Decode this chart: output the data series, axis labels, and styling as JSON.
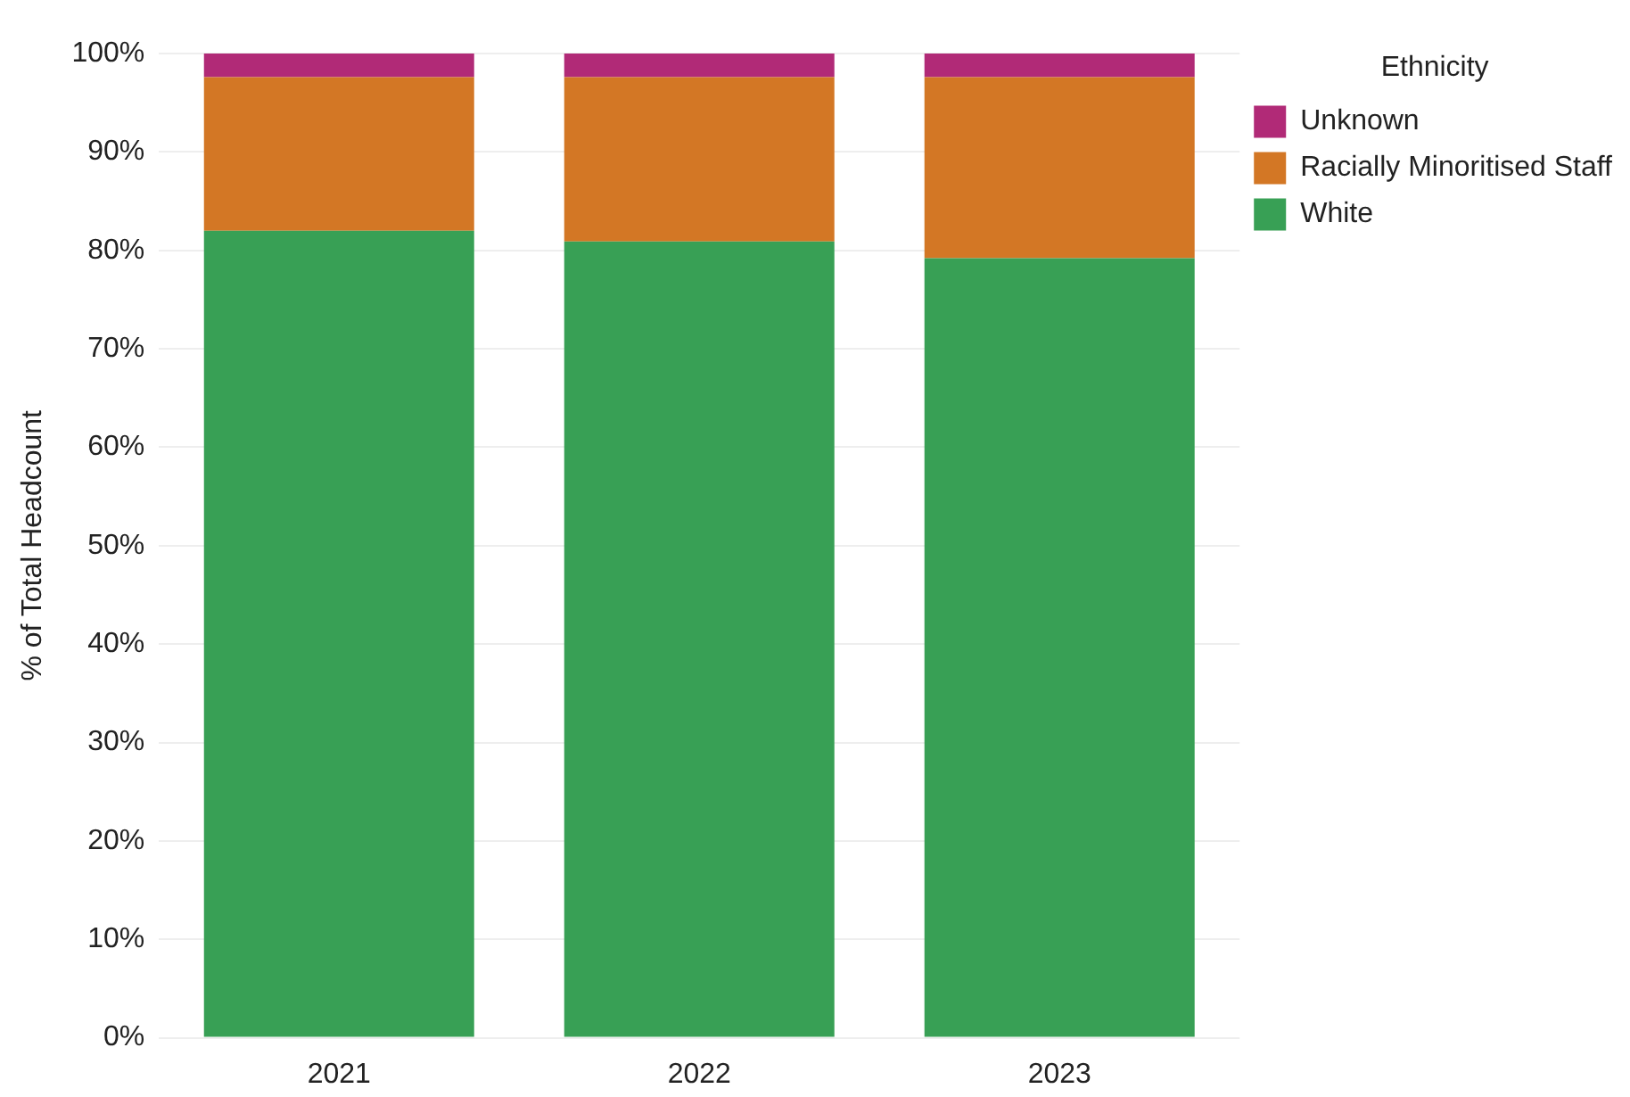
{
  "chart_data": {
    "type": "bar",
    "stacked": true,
    "ylabel": "% of Total Headcount",
    "legend_title": "Ethnicity",
    "legend": "top right",
    "grid": "y",
    "categories": [
      "2021",
      "2022",
      "2023"
    ],
    "series": [
      {
        "name": "White",
        "color": "#38a055",
        "values": [
          82.0,
          80.9,
          79.2
        ]
      },
      {
        "name": "Racially Minoritised Staff",
        "color": "#d37725",
        "values": [
          15.6,
          16.7,
          18.4
        ]
      },
      {
        "name": "Unknown",
        "color": "#b12a77",
        "values": [
          2.4,
          2.4,
          2.4
        ]
      }
    ],
    "ylim": [
      0,
      100
    ],
    "yticks": [
      {
        "value": 0,
        "label": "0%"
      },
      {
        "value": 10,
        "label": "10%"
      },
      {
        "value": 20,
        "label": "20%"
      },
      {
        "value": 30,
        "label": "30%"
      },
      {
        "value": 40,
        "label": "40%"
      },
      {
        "value": 50,
        "label": "50%"
      },
      {
        "value": 60,
        "label": "60%"
      },
      {
        "value": 70,
        "label": "70%"
      },
      {
        "value": 80,
        "label": "80%"
      },
      {
        "value": 90,
        "label": "90%"
      },
      {
        "value": 100,
        "label": "100%"
      }
    ]
  }
}
